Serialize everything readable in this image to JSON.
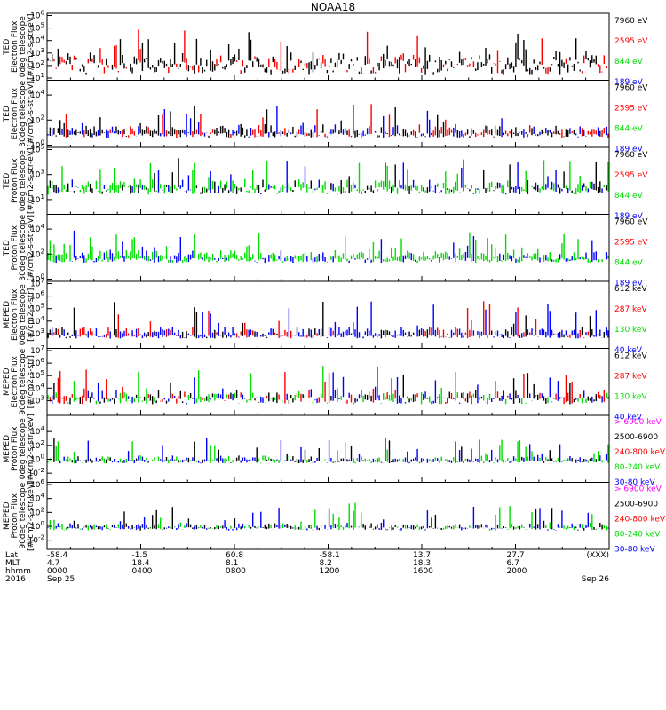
{
  "title": "NOAA18",
  "colors": {
    "black": "#000000",
    "red": "#ff0000",
    "green": "#00dd00",
    "blue": "#0000ff",
    "magenta": "#ff00ff"
  },
  "footer": {
    "row_labels": [
      "Lat",
      "MLT",
      "hhmm",
      "2016"
    ],
    "ticks": [
      {
        "lat": "-58.4",
        "mlt": "4.7",
        "hhmm": "0000",
        "date": "Sep 25"
      },
      {
        "lat": "-1.5",
        "mlt": "18.4",
        "hhmm": "0400",
        "date": ""
      },
      {
        "lat": "60.8",
        "mlt": "8.1",
        "hhmm": "0800",
        "date": ""
      },
      {
        "lat": "-58.1",
        "mlt": "8.2",
        "hhmm": "1200",
        "date": ""
      },
      {
        "lat": "13.7",
        "mlt": "18.3",
        "hhmm": "1600",
        "date": ""
      },
      {
        "lat": "27.7",
        "mlt": "6.7",
        "hhmm": "2000",
        "date": ""
      },
      {
        "lat": "(XXX)",
        "mlt": "",
        "hhmm": "",
        "date": "Sep 26"
      }
    ]
  },
  "chart_data": [
    {
      "type": "line",
      "ylabel": [
        "TED",
        "Electron Flux",
        "0deg telescope",
        "[#/cm2-s-str-eV]"
      ],
      "ylim_log10": [
        1,
        6
      ],
      "yticks": [
        {
          "exp": 1
        },
        {
          "exp": 2
        },
        {
          "exp": 3
        },
        {
          "exp": 4
        },
        {
          "exp": 5
        },
        {
          "exp": 6
        }
      ],
      "legend": [
        {
          "label": "7960 eV",
          "color": "#000000"
        },
        {
          "label": "2595 eV",
          "color": "#ff0000"
        },
        {
          "label": "844 eV",
          "color": "#00dd00"
        },
        {
          "label": "189 eV",
          "color": "#0000ff"
        }
      ]
    },
    {
      "type": "line",
      "ylabel": [
        "TED",
        "Electron Flux",
        "30deg telescope",
        "[#/cm2-s-str-eV]"
      ],
      "ylim_log10": [
        0,
        5
      ],
      "yticks": [
        {
          "exp": 0
        },
        {
          "exp": 2
        },
        {
          "exp": 4
        }
      ],
      "legend": [
        {
          "label": "7960 eV",
          "color": "#000000"
        },
        {
          "label": "2595 eV",
          "color": "#ff0000"
        },
        {
          "label": "844 eV",
          "color": "#00dd00"
        },
        {
          "label": "189 eV",
          "color": "#0000ff"
        }
      ]
    },
    {
      "type": "line",
      "ylabel": [
        "TED",
        "Proton Flux",
        "0deg telescope",
        "[#/cm2-s-str-eV]"
      ],
      "ylim_log10": [
        0,
        5
      ],
      "yticks": [
        {
          "exp": 1
        },
        {
          "exp": 3
        },
        {
          "exp": 5
        }
      ],
      "legend": [
        {
          "label": "7960 eV",
          "color": "#000000"
        },
        {
          "label": "2595 eV",
          "color": "#ff0000"
        },
        {
          "label": "844 eV",
          "color": "#00dd00"
        },
        {
          "label": "189 eV",
          "color": "#0000ff"
        }
      ]
    },
    {
      "type": "line",
      "ylabel": [
        "TED",
        "Proton Flux",
        "30deg telescope",
        "[#/cm2-s-str-eV]"
      ],
      "ylim_log10": [
        0,
        5
      ],
      "yticks": [
        {
          "exp": 0
        },
        {
          "exp": 2
        },
        {
          "exp": 4
        }
      ],
      "legend": [
        {
          "label": "7960 eV",
          "color": "#000000"
        },
        {
          "label": "2595 eV",
          "color": "#ff0000"
        },
        {
          "label": "844 eV",
          "color": "#00dd00"
        },
        {
          "label": "189 eV",
          "color": "#0000ff"
        }
      ]
    },
    {
      "type": "line",
      "ylabel": [
        "MEPED",
        "Electron Flux",
        "0deg telescope",
        "[#/cm2-s-str]"
      ],
      "ylim_log10": [
        2,
        7
      ],
      "yticks": [
        {
          "exp": 3
        },
        {
          "exp": 4
        },
        {
          "exp": 5
        },
        {
          "exp": 6
        },
        {
          "exp": 7
        }
      ],
      "legend": [
        {
          "label": "612 keV",
          "color": "#000000"
        },
        {
          "label": "287 keV",
          "color": "#ff0000"
        },
        {
          "label": "130 keV",
          "color": "#00dd00"
        },
        {
          "label": "40 keV",
          "color": "#0000ff"
        }
      ]
    },
    {
      "type": "line",
      "ylabel": [
        "MEPED",
        "Electron Flux",
        "90deg telescope",
        "[#/cm2-s-str]"
      ],
      "ylim_log10": [
        2,
        7
      ],
      "yticks": [
        {
          "exp": 3
        },
        {
          "exp": 4
        },
        {
          "exp": 5
        },
        {
          "exp": 6
        },
        {
          "exp": 7
        }
      ],
      "legend": [
        {
          "label": "612 keV",
          "color": "#000000"
        },
        {
          "label": "287 keV",
          "color": "#ff0000"
        },
        {
          "label": "130 keV",
          "color": "#00dd00"
        },
        {
          "label": "40 keV",
          "color": "#0000ff"
        }
      ]
    },
    {
      "type": "line",
      "ylabel": [
        "MEPED",
        "Proton Flux",
        "0deg telescope",
        "[#/cm2-s-str-keV]"
      ],
      "ylim_log10": [
        -3,
        6
      ],
      "yticks": [
        {
          "exp": -2
        },
        {
          "exp": 0
        },
        {
          "exp": 2
        },
        {
          "exp": 4
        }
      ],
      "legend": [
        {
          "label": "> 6900 keV",
          "color": "#ff00ff"
        },
        {
          "label": "2500-6900",
          "color": "#000000"
        },
        {
          "label": "240-800 keV",
          "color": "#ff0000"
        },
        {
          "label": "80-240 keV",
          "color": "#00dd00"
        },
        {
          "label": "30-80 keV",
          "color": "#0000ff"
        }
      ]
    },
    {
      "type": "line",
      "ylabel": [
        "MEPED",
        "Proton Flux",
        "90deg telescope",
        "[#/cm2-s-str-keV]"
      ],
      "ylim_log10": [
        -3,
        6
      ],
      "yticks": [
        {
          "exp": -2
        },
        {
          "exp": 0
        },
        {
          "exp": 2
        },
        {
          "exp": 4
        },
        {
          "exp": 6
        }
      ],
      "legend": [
        {
          "label": "> 6900 keV",
          "color": "#ff00ff"
        },
        {
          "label": "2500-6900",
          "color": "#000000"
        },
        {
          "label": "240-800 keV",
          "color": "#ff0000"
        },
        {
          "label": "80-240 keV",
          "color": "#00dd00"
        },
        {
          "label": "30-80 keV",
          "color": "#0000ff"
        }
      ]
    }
  ]
}
